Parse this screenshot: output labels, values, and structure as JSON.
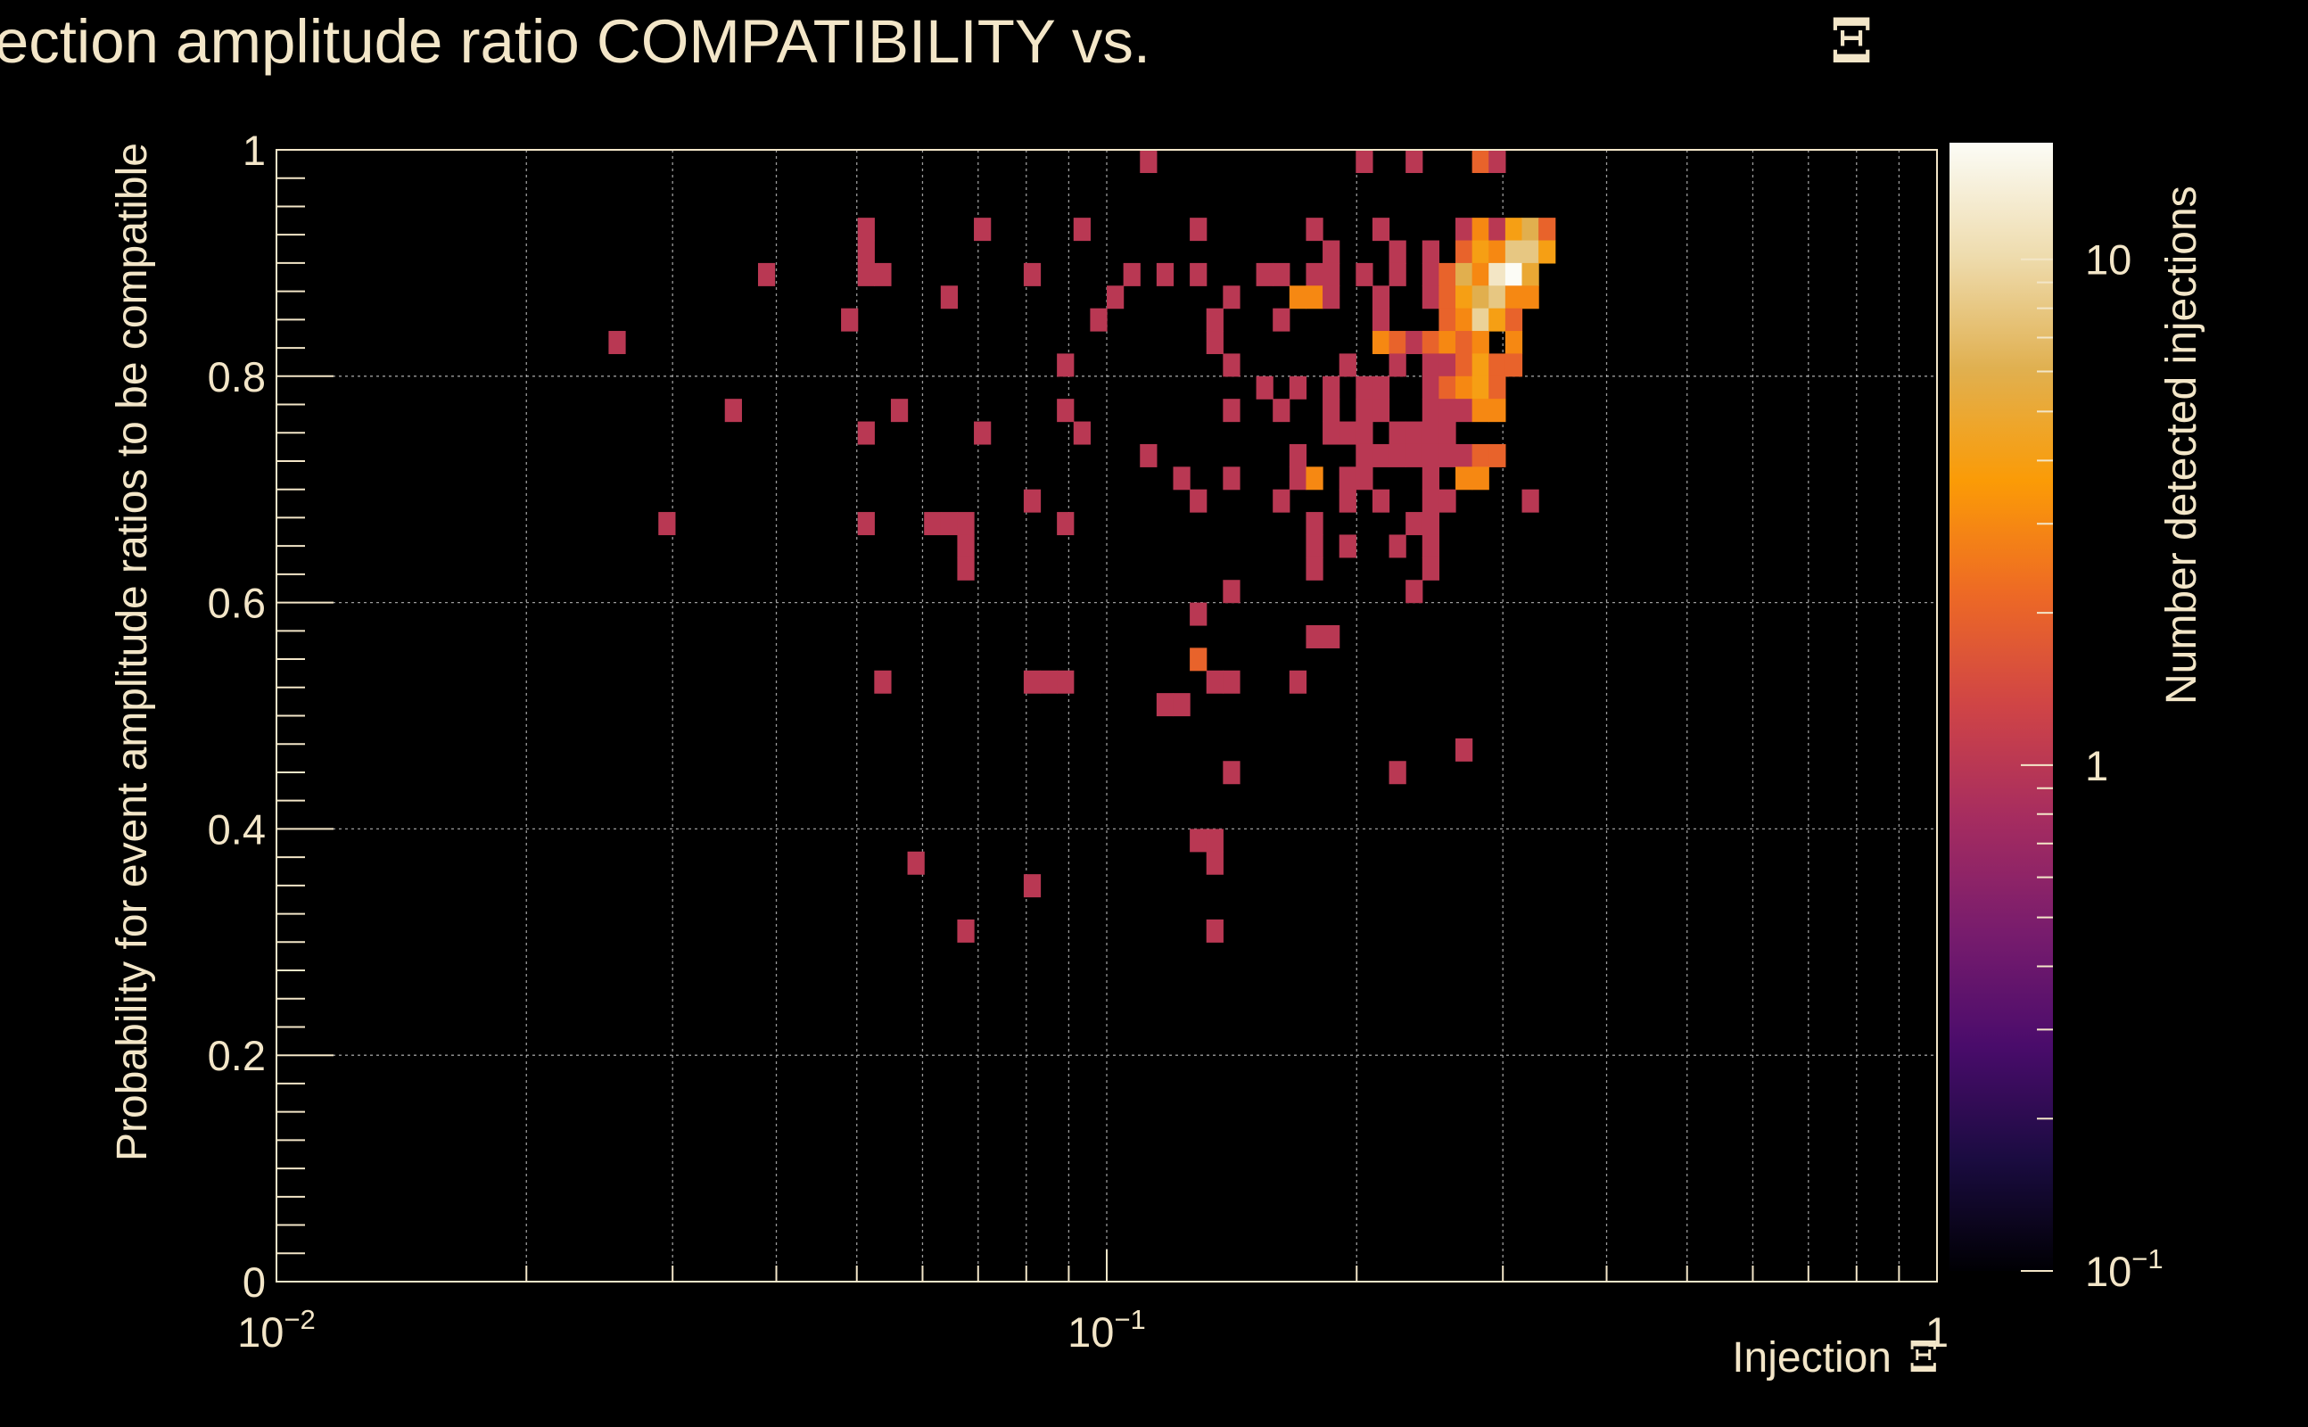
{
  "chart_data": {
    "type": "heatmap",
    "title": "Injection amplitude ratio COMPATIBILITY vs.",
    "title_symbol": "Ξ",
    "xlabel": "Injection",
    "xlabel_symbol": "Ξ",
    "ylabel": "Probability for event amplitude ratios to be compatible",
    "zlabel": "Number detected injections",
    "x_scale": "log",
    "xlim": [
      0.01,
      1
    ],
    "ylim": [
      0,
      1
    ],
    "z_scale": "log",
    "zlim": [
      0.1,
      17
    ],
    "grid": true,
    "x_ticks": [
      {
        "value": 0.01,
        "base": "10",
        "exp": "−2"
      },
      {
        "value": 0.1,
        "base": "10",
        "exp": "−1"
      },
      {
        "value": 1,
        "base": "1",
        "exp": ""
      }
    ],
    "y_ticks": [
      {
        "value": 0,
        "label": "0"
      },
      {
        "value": 0.2,
        "label": "0.2"
      },
      {
        "value": 0.4,
        "label": "0.4"
      },
      {
        "value": 0.6,
        "label": "0.6"
      },
      {
        "value": 0.8,
        "label": "0.8"
      },
      {
        "value": 1,
        "label": "1"
      }
    ],
    "z_ticks": [
      {
        "value": 0.1,
        "base": "10",
        "exp": "−1"
      },
      {
        "value": 1,
        "base": "1",
        "exp": ""
      },
      {
        "value": 10,
        "base": "10",
        "exp": ""
      }
    ],
    "colormap": [
      "#000004",
      "#1b0c41",
      "#4a0c6b",
      "#781c6d",
      "#a52c60",
      "#cf4446",
      "#ed6925",
      "#fb9b06",
      "#e0b050",
      "#eedcae",
      "#fcfcf6"
    ],
    "bins": {
      "x_log10_start": -2,
      "x_log10_step": 0.02,
      "y_start": 0,
      "y_step": 0.02,
      "cells": [
        [
          52,
          49,
          1
        ],
        [
          65,
          49,
          1
        ],
        [
          68,
          49,
          1
        ],
        [
          72,
          49,
          2
        ],
        [
          73,
          49,
          1
        ],
        [
          35,
          46,
          1
        ],
        [
          42,
          46,
          1
        ],
        [
          48,
          46,
          1
        ],
        [
          55,
          46,
          1
        ],
        [
          62,
          46,
          1
        ],
        [
          66,
          46,
          1
        ],
        [
          71,
          46,
          1
        ],
        [
          72,
          46,
          3
        ],
        [
          73,
          46,
          1
        ],
        [
          74,
          46,
          4
        ],
        [
          75,
          46,
          6
        ],
        [
          76,
          46,
          2
        ],
        [
          35,
          45,
          1
        ],
        [
          63,
          45,
          1
        ],
        [
          67,
          45,
          1
        ],
        [
          69,
          45,
          1
        ],
        [
          71,
          45,
          2
        ],
        [
          72,
          45,
          4
        ],
        [
          73,
          45,
          3
        ],
        [
          74,
          45,
          8
        ],
        [
          75,
          45,
          8
        ],
        [
          76,
          45,
          4
        ],
        [
          29,
          44,
          1
        ],
        [
          35,
          44,
          1
        ],
        [
          36,
          44,
          1
        ],
        [
          45,
          44,
          1
        ],
        [
          51,
          44,
          1
        ],
        [
          53,
          44,
          1
        ],
        [
          55,
          44,
          1
        ],
        [
          59,
          44,
          1
        ],
        [
          60,
          44,
          1
        ],
        [
          62,
          44,
          1
        ],
        [
          63,
          44,
          1
        ],
        [
          65,
          44,
          1
        ],
        [
          67,
          44,
          1
        ],
        [
          69,
          44,
          1
        ],
        [
          70,
          44,
          2
        ],
        [
          71,
          44,
          6
        ],
        [
          72,
          44,
          3
        ],
        [
          73,
          44,
          12
        ],
        [
          74,
          44,
          17
        ],
        [
          75,
          44,
          5
        ],
        [
          40,
          43,
          1
        ],
        [
          50,
          43,
          1
        ],
        [
          57,
          43,
          1
        ],
        [
          61,
          43,
          3
        ],
        [
          62,
          43,
          3
        ],
        [
          63,
          43,
          1
        ],
        [
          66,
          43,
          1
        ],
        [
          69,
          43,
          1
        ],
        [
          70,
          43,
          2
        ],
        [
          71,
          43,
          4
        ],
        [
          72,
          43,
          6
        ],
        [
          73,
          43,
          8
        ],
        [
          74,
          43,
          3
        ],
        [
          75,
          43,
          3
        ],
        [
          34,
          42,
          1
        ],
        [
          49,
          42,
          1
        ],
        [
          56,
          42,
          1
        ],
        [
          60,
          42,
          1
        ],
        [
          66,
          42,
          1
        ],
        [
          70,
          42,
          2
        ],
        [
          71,
          42,
          3
        ],
        [
          72,
          42,
          9
        ],
        [
          73,
          42,
          4
        ],
        [
          74,
          42,
          2
        ],
        [
          20,
          41,
          1
        ],
        [
          56,
          41,
          1
        ],
        [
          66,
          41,
          3
        ],
        [
          67,
          41,
          2
        ],
        [
          68,
          41,
          1
        ],
        [
          69,
          41,
          2
        ],
        [
          70,
          41,
          3
        ],
        [
          71,
          41,
          2
        ],
        [
          72,
          41,
          3
        ],
        [
          74,
          41,
          3
        ],
        [
          47,
          40,
          1
        ],
        [
          57,
          40,
          1
        ],
        [
          64,
          40,
          1
        ],
        [
          67,
          40,
          1
        ],
        [
          69,
          40,
          1
        ],
        [
          70,
          40,
          1
        ],
        [
          71,
          40,
          2
        ],
        [
          72,
          40,
          4
        ],
        [
          73,
          40,
          2
        ],
        [
          74,
          40,
          2
        ],
        [
          59,
          39,
          1
        ],
        [
          61,
          39,
          1
        ],
        [
          63,
          39,
          1
        ],
        [
          65,
          39,
          1
        ],
        [
          66,
          39,
          1
        ],
        [
          69,
          39,
          1
        ],
        [
          70,
          39,
          2
        ],
        [
          71,
          39,
          3
        ],
        [
          72,
          39,
          4
        ],
        [
          73,
          39,
          2
        ],
        [
          27,
          38,
          1
        ],
        [
          37,
          38,
          1
        ],
        [
          47,
          38,
          1
        ],
        [
          57,
          38,
          1
        ],
        [
          60,
          38,
          1
        ],
        [
          63,
          38,
          1
        ],
        [
          65,
          38,
          1
        ],
        [
          66,
          38,
          1
        ],
        [
          69,
          38,
          1
        ],
        [
          70,
          38,
          1
        ],
        [
          71,
          38,
          1
        ],
        [
          72,
          38,
          3
        ],
        [
          73,
          38,
          3
        ],
        [
          35,
          37,
          1
        ],
        [
          42,
          37,
          1
        ],
        [
          48,
          37,
          1
        ],
        [
          63,
          37,
          1
        ],
        [
          64,
          37,
          1
        ],
        [
          65,
          37,
          1
        ],
        [
          67,
          37,
          1
        ],
        [
          68,
          37,
          1
        ],
        [
          69,
          37,
          1
        ],
        [
          70,
          37,
          1
        ],
        [
          52,
          36,
          1
        ],
        [
          61,
          36,
          1
        ],
        [
          65,
          36,
          1
        ],
        [
          66,
          36,
          1
        ],
        [
          67,
          36,
          1
        ],
        [
          68,
          36,
          1
        ],
        [
          69,
          36,
          1
        ],
        [
          70,
          36,
          1
        ],
        [
          71,
          36,
          1
        ],
        [
          72,
          36,
          2
        ],
        [
          73,
          36,
          2
        ],
        [
          54,
          35,
          1
        ],
        [
          57,
          35,
          1
        ],
        [
          61,
          35,
          1
        ],
        [
          62,
          35,
          3
        ],
        [
          64,
          35,
          1
        ],
        [
          65,
          35,
          1
        ],
        [
          69,
          35,
          1
        ],
        [
          71,
          35,
          3
        ],
        [
          72,
          35,
          3
        ],
        [
          45,
          34,
          1
        ],
        [
          55,
          34,
          1
        ],
        [
          60,
          34,
          1
        ],
        [
          64,
          34,
          1
        ],
        [
          66,
          34,
          1
        ],
        [
          69,
          34,
          1
        ],
        [
          70,
          34,
          1
        ],
        [
          75,
          34,
          1
        ],
        [
          23,
          33,
          1
        ],
        [
          35,
          33,
          1
        ],
        [
          39,
          33,
          1
        ],
        [
          40,
          33,
          1
        ],
        [
          41,
          33,
          1
        ],
        [
          47,
          33,
          1
        ],
        [
          62,
          33,
          1
        ],
        [
          68,
          33,
          1
        ],
        [
          69,
          33,
          1
        ],
        [
          41,
          32,
          1
        ],
        [
          62,
          32,
          1
        ],
        [
          64,
          32,
          1
        ],
        [
          67,
          32,
          1
        ],
        [
          69,
          32,
          1
        ],
        [
          41,
          31,
          1
        ],
        [
          62,
          31,
          1
        ],
        [
          69,
          31,
          1
        ],
        [
          57,
          30,
          1
        ],
        [
          68,
          30,
          1
        ],
        [
          55,
          29,
          1
        ],
        [
          62,
          28,
          1
        ],
        [
          63,
          28,
          1
        ],
        [
          55,
          27,
          2
        ],
        [
          36,
          26,
          1
        ],
        [
          45,
          26,
          1
        ],
        [
          46,
          26,
          1
        ],
        [
          47,
          26,
          1
        ],
        [
          56,
          26,
          1
        ],
        [
          57,
          26,
          1
        ],
        [
          61,
          26,
          1
        ],
        [
          53,
          25,
          1
        ],
        [
          54,
          25,
          1
        ],
        [
          71,
          23,
          1
        ],
        [
          57,
          22,
          1
        ],
        [
          67,
          22,
          1
        ],
        [
          55,
          19,
          1
        ],
        [
          56,
          19,
          1
        ],
        [
          38,
          18,
          1
        ],
        [
          56,
          18,
          1
        ],
        [
          45,
          17,
          1
        ],
        [
          41,
          15,
          1
        ],
        [
          56,
          15,
          1
        ]
      ]
    }
  }
}
